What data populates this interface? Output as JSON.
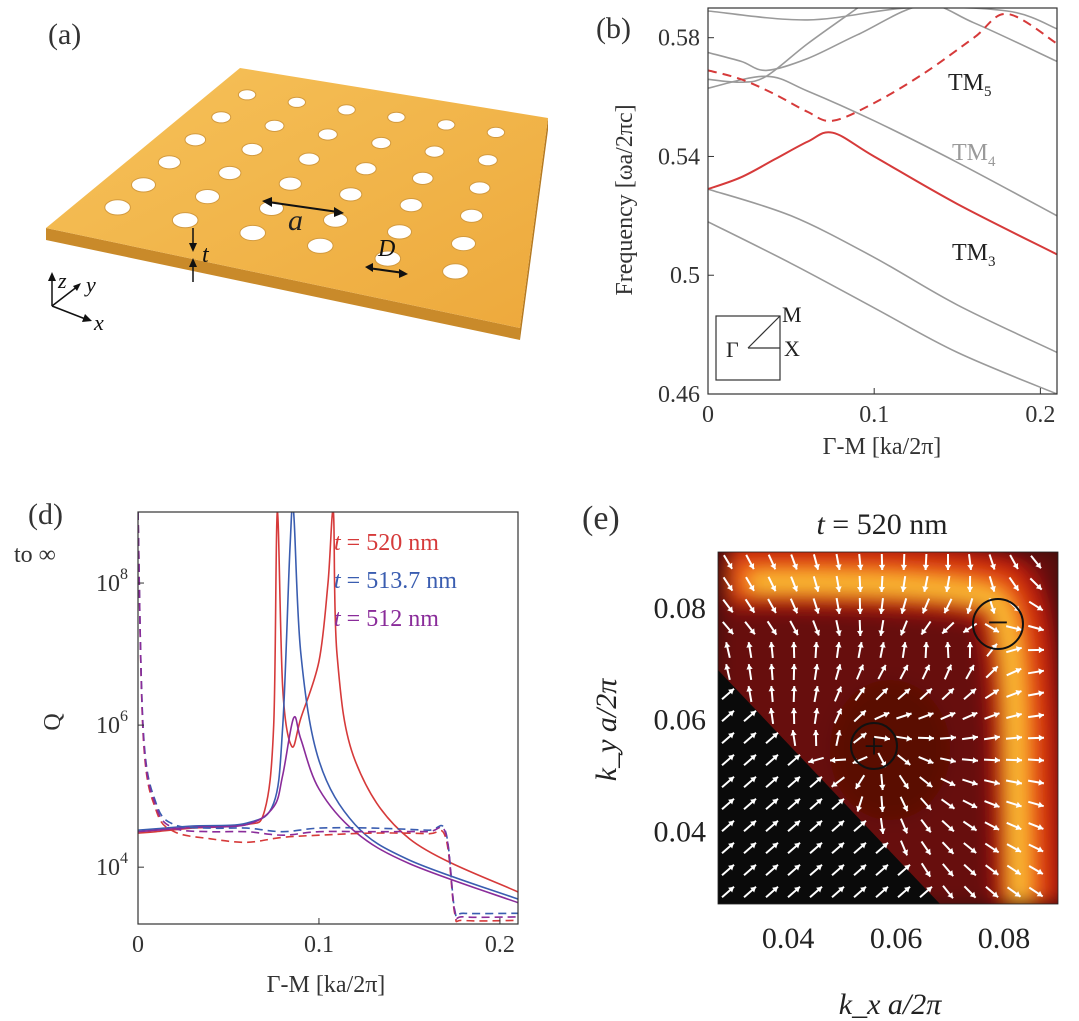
{
  "panel_a": {
    "label": "(a)",
    "lattice_label": "a",
    "thickness_label": "t",
    "diameter_label": "D",
    "axis_x": "x",
    "axis_y": "y",
    "axis_z": "z"
  },
  "panel_b": {
    "label": "(b)",
    "ylabel": "Frequency [ωa/2πc]",
    "xlabel": "Γ-M [ka/2π]",
    "yticks": [
      "0.46",
      "0.5",
      "0.54",
      "0.58"
    ],
    "xticks": [
      "0",
      "0.1",
      "0.2"
    ],
    "tm5": "TM",
    "tm5_sub": "5",
    "tm4": "TM",
    "tm4_sub": "4",
    "tm3": "TM",
    "tm3_sub": "3",
    "inset": {
      "gamma": "Γ",
      "m": "M",
      "x": "X"
    }
  },
  "panel_d": {
    "label": "(d)",
    "to_inf": "to ∞",
    "ylabel": "Q",
    "xlabel": "Γ-M [ka/2π]",
    "yticks": [
      {
        "base": "10",
        "exp": "8"
      },
      {
        "base": "10",
        "exp": "6"
      },
      {
        "base": "10",
        "exp": "4"
      }
    ],
    "xticks": [
      "0",
      "0.1",
      "0.2"
    ],
    "legend": [
      {
        "var": "t",
        "text": " = 520 nm",
        "color": "#d63a3a"
      },
      {
        "var": "t",
        "text": " = 513.7 nm",
        "color": "#3a5db0"
      },
      {
        "var": "t",
        "text": " = 512 nm",
        "color": "#8a2c9a"
      }
    ]
  },
  "panel_e": {
    "label": "(e)",
    "title_var": "t",
    "title_rest": " = 520 nm",
    "ylabel": "k_y a/2π",
    "xlabel": "k_x a/2π",
    "yticks": [
      "0.08",
      "0.06",
      "0.04"
    ],
    "xticks": [
      "0.04",
      "0.06",
      "0.08"
    ],
    "minus": "−",
    "plus": "+"
  },
  "chart_data": [
    {
      "type": "line",
      "panel": "b",
      "title": "",
      "xlabel": "Γ-M [ka/2π]",
      "ylabel": "Frequency [ωa/2πc]",
      "xlim": [
        0,
        0.21
      ],
      "ylim": [
        0.46,
        0.59
      ],
      "series": [
        {
          "name": "TM3",
          "color": "#d63a3a",
          "style": "solid",
          "x": [
            0,
            0.02,
            0.04,
            0.06,
            0.075,
            0.1,
            0.15,
            0.21
          ],
          "y": [
            0.529,
            0.533,
            0.539,
            0.545,
            0.548,
            0.54,
            0.524,
            0.507
          ]
        },
        {
          "name": "TM5",
          "color": "#d63a3a",
          "style": "dashed",
          "x": [
            0,
            0.02,
            0.04,
            0.06,
            0.075,
            0.1,
            0.13,
            0.16,
            0.18,
            0.21
          ],
          "y": [
            0.569,
            0.566,
            0.561,
            0.555,
            0.552,
            0.558,
            0.568,
            0.58,
            0.588,
            0.578
          ]
        },
        {
          "name": "gray1",
          "color": "#9a9a9a",
          "style": "solid",
          "x": [
            0,
            0.05,
            0.1,
            0.15,
            0.21
          ],
          "y": [
            0.518,
            0.504,
            0.489,
            0.474,
            0.46
          ]
        },
        {
          "name": "gray2",
          "color": "#9a9a9a",
          "style": "solid",
          "x": [
            0,
            0.05,
            0.1,
            0.15,
            0.21
          ],
          "y": [
            0.529,
            0.52,
            0.506,
            0.49,
            0.474
          ]
        },
        {
          "name": "TM4",
          "color": "#9a9a9a",
          "style": "solid",
          "x": [
            0,
            0.035,
            0.06,
            0.1,
            0.15,
            0.21
          ],
          "y": [
            0.563,
            0.567,
            0.562,
            0.552,
            0.538,
            0.52
          ]
        },
        {
          "name": "gray4",
          "color": "#9a9a9a",
          "style": "solid",
          "x": [
            0,
            0.02,
            0.035,
            0.06,
            0.09,
            0.13,
            0.16,
            0.21
          ],
          "y": [
            0.575,
            0.572,
            0.569,
            0.573,
            0.581,
            0.591,
            0.585,
            0.572
          ]
        },
        {
          "name": "gray5",
          "color": "#9a9a9a",
          "style": "solid",
          "x": [
            0,
            0.02,
            0.035,
            0.06,
            0.09
          ],
          "y": [
            0.566,
            0.565,
            0.567,
            0.578,
            0.59
          ]
        },
        {
          "name": "gray6",
          "color": "#9a9a9a",
          "style": "solid",
          "x": [
            0,
            0.06,
            0.12,
            0.18,
            0.21
          ],
          "y": [
            0.589,
            0.586,
            0.59,
            0.589,
            0.583
          ]
        }
      ]
    },
    {
      "type": "line",
      "panel": "d",
      "title": "",
      "xlabel": "Γ-M [ka/2π]",
      "ylabel": "Q",
      "y_scale": "log10",
      "xlim": [
        0,
        0.21
      ],
      "ylim_log10": [
        3.2,
        9.0
      ],
      "series": [
        {
          "name": "t = 520 nm",
          "color": "#d63a3a",
          "style": "solid",
          "x": [
            0,
            0.01,
            0.03,
            0.06,
            0.07,
            0.075,
            0.077,
            0.08,
            0.085,
            0.09,
            0.1,
            0.105,
            0.108,
            0.11,
            0.12,
            0.15,
            0.21
          ],
          "log10y": [
            4.48,
            4.5,
            4.55,
            4.6,
            4.8,
            6.0,
            9.0,
            6.5,
            5.7,
            6.1,
            6.9,
            8.0,
            9.0,
            7.0,
            5.5,
            4.4,
            3.65
          ]
        },
        {
          "name": "t = 513.7 nm",
          "color": "#3a5db0",
          "style": "solid",
          "x": [
            0,
            0.01,
            0.03,
            0.06,
            0.075,
            0.08,
            0.084,
            0.086,
            0.09,
            0.1,
            0.12,
            0.15,
            0.21
          ],
          "log10y": [
            4.52,
            4.54,
            4.58,
            4.62,
            4.9,
            6.0,
            8.5,
            9.0,
            7.0,
            5.5,
            4.6,
            4.1,
            3.55
          ]
        },
        {
          "name": "t = 512 nm",
          "color": "#8a2c9a",
          "style": "solid",
          "x": [
            0,
            0.01,
            0.03,
            0.06,
            0.075,
            0.08,
            0.086,
            0.09,
            0.1,
            0.12,
            0.15,
            0.21
          ],
          "log10y": [
            4.5,
            4.52,
            4.56,
            4.6,
            4.85,
            5.3,
            6.1,
            5.8,
            5.1,
            4.5,
            4.05,
            3.5
          ]
        },
        {
          "name": "t = 520 nm (dashed)",
          "color": "#d63a3a",
          "style": "dashed",
          "x": [
            0,
            0.003,
            0.01,
            0.02,
            0.04,
            0.06,
            0.08,
            0.1,
            0.13,
            0.16,
            0.17,
            0.175,
            0.18,
            0.21
          ],
          "log10y": [
            9.0,
            5.8,
            4.8,
            4.5,
            4.4,
            4.35,
            4.42,
            4.45,
            4.48,
            4.47,
            4.42,
            3.35,
            3.25,
            3.25
          ]
        },
        {
          "name": "t = 513.7 nm (dashed)",
          "color": "#3a5db0",
          "style": "dashed",
          "x": [
            0,
            0.003,
            0.01,
            0.02,
            0.04,
            0.06,
            0.08,
            0.1,
            0.13,
            0.16,
            0.17,
            0.175,
            0.18,
            0.21
          ],
          "log10y": [
            9.0,
            5.9,
            4.9,
            4.6,
            4.55,
            4.55,
            4.5,
            4.55,
            4.55,
            4.52,
            4.5,
            3.4,
            3.35,
            3.35
          ]
        },
        {
          "name": "t = 512 nm (dashed)",
          "color": "#8a2c9a",
          "style": "dashed",
          "x": [
            0,
            0.003,
            0.01,
            0.02,
            0.04,
            0.06,
            0.08,
            0.1,
            0.13,
            0.16,
            0.17,
            0.175,
            0.18,
            0.21
          ],
          "log10y": [
            9.0,
            5.85,
            4.85,
            4.55,
            4.5,
            4.5,
            4.45,
            4.5,
            4.5,
            4.5,
            4.48,
            3.38,
            3.3,
            3.3
          ]
        }
      ]
    },
    {
      "type": "heatmap",
      "panel": "e",
      "title": "t = 520 nm",
      "xlabel": "k_x a/2π",
      "ylabel": "k_y a/2π",
      "xlim": [
        0.027,
        0.09
      ],
      "ylim": [
        0.027,
        0.09
      ],
      "colormap": "hot",
      "vortices": [
        {
          "kx": 0.077,
          "ky": 0.076,
          "charge": "−"
        },
        {
          "kx": 0.054,
          "ky": 0.054,
          "charge": "+"
        }
      ]
    }
  ]
}
